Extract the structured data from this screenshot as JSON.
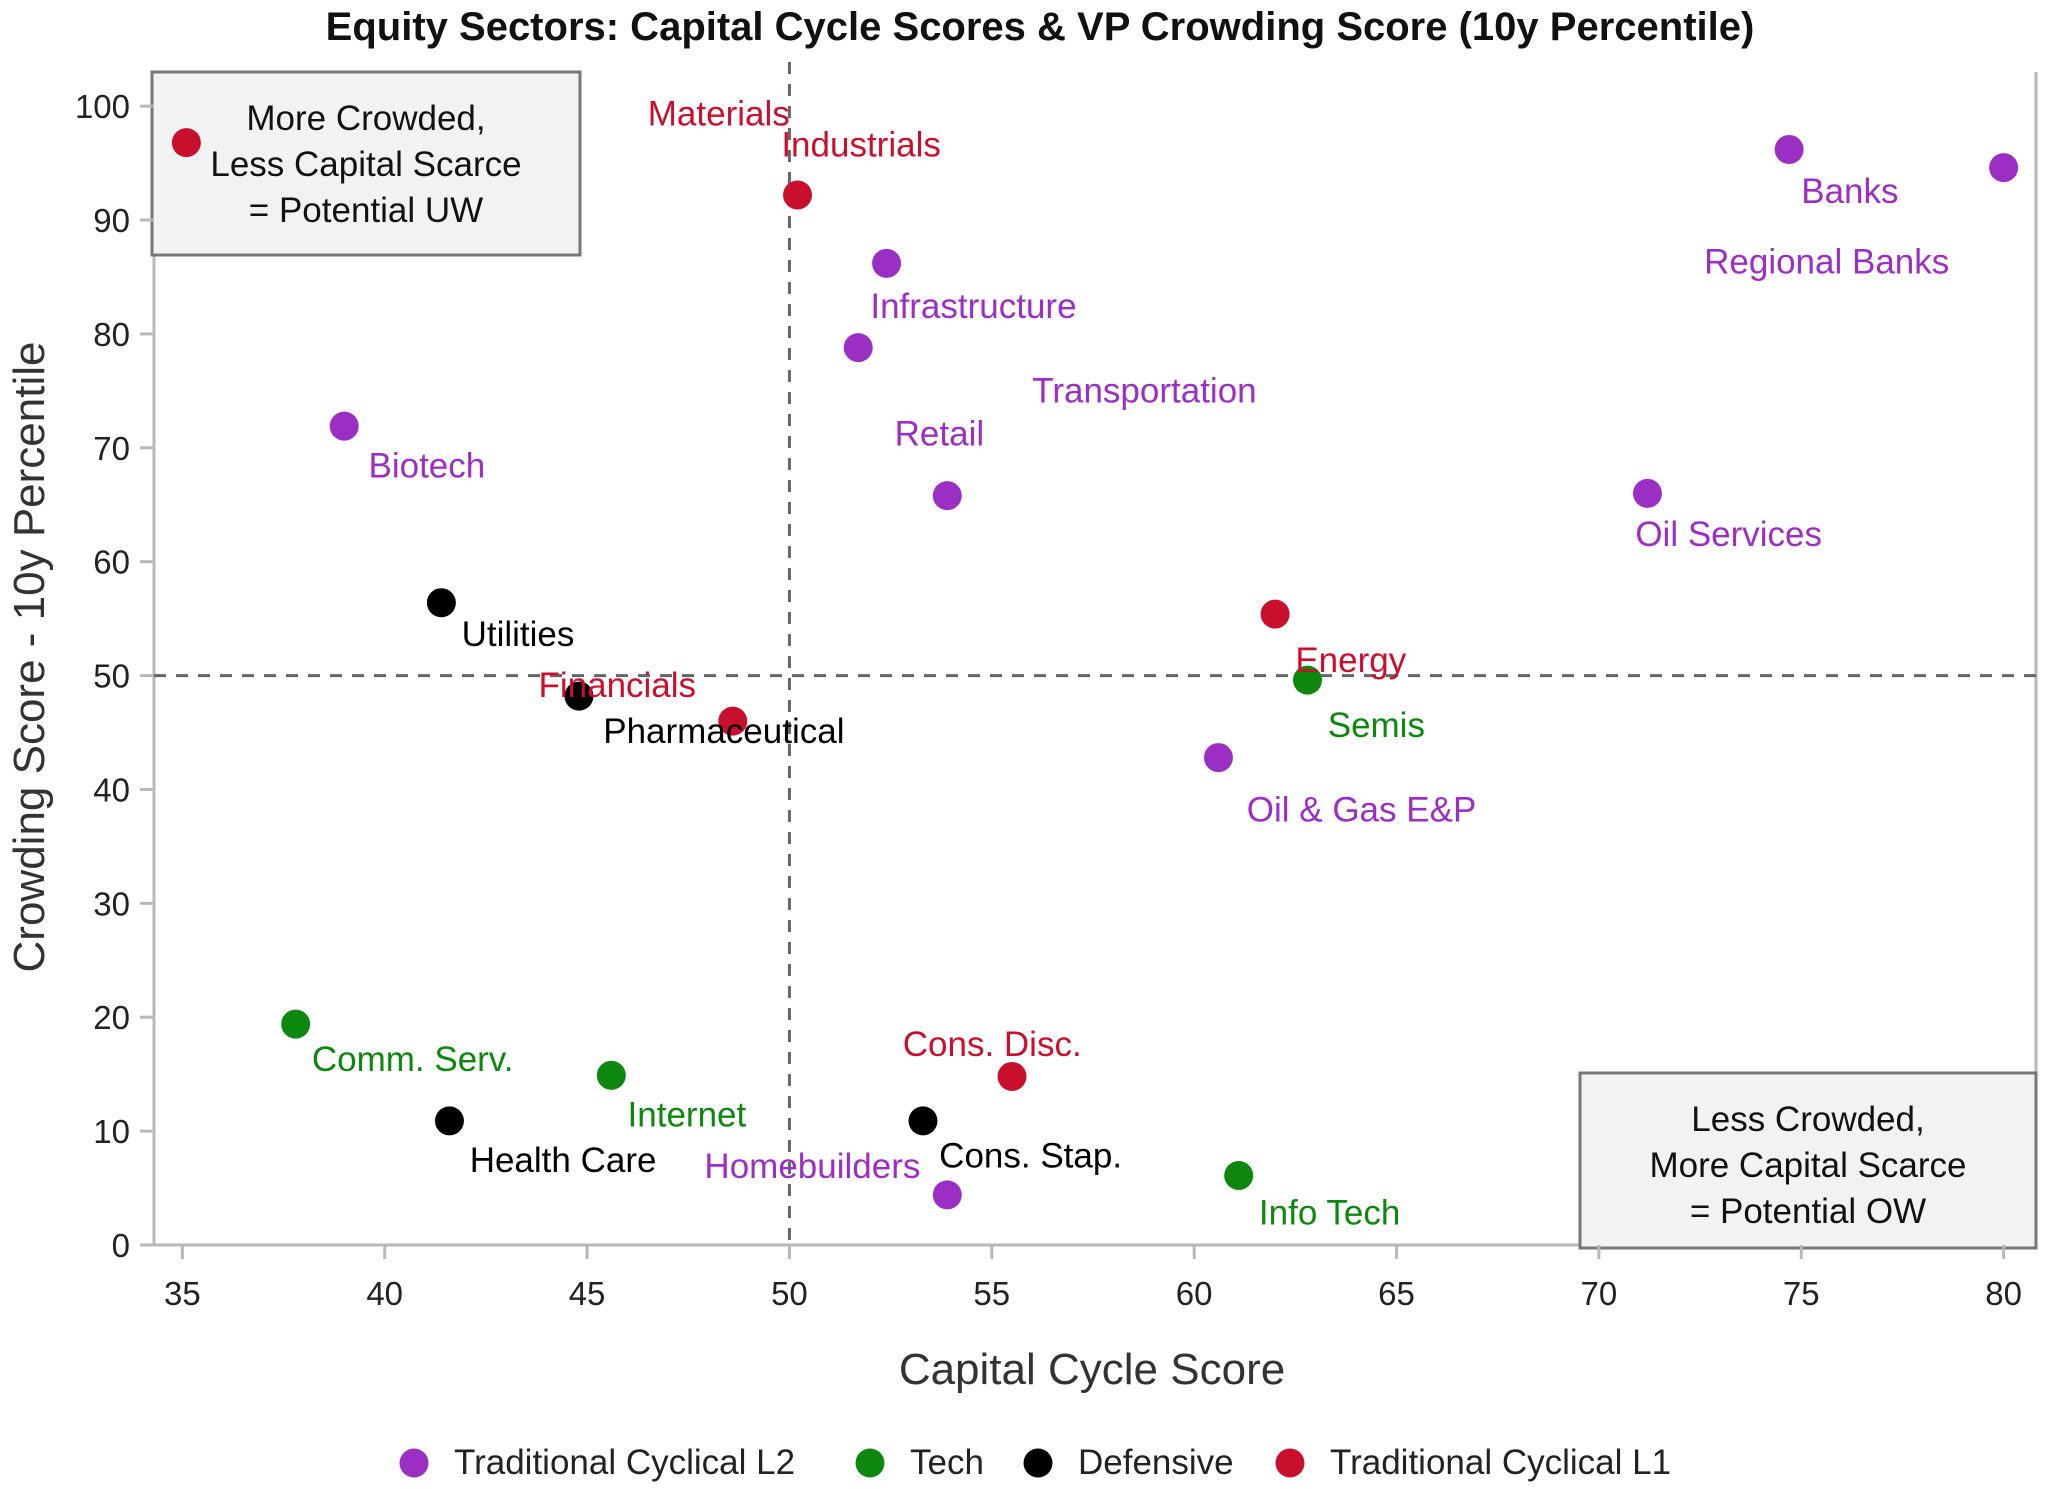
{
  "chart_data": {
    "type": "scatter",
    "title": "Equity Sectors: Capital Cycle Scores & VP Crowding Score (10y Percentile)",
    "xlabel": "Capital Cycle Score",
    "ylabel": "Crowding Score - 10y Percentile",
    "xlim": [
      34.3,
      80.8
    ],
    "ylim": [
      0,
      103
    ],
    "xticks": [
      35,
      40,
      45,
      50,
      55,
      60,
      65,
      70,
      75,
      80
    ],
    "yticks": [
      0,
      10,
      20,
      30,
      40,
      50,
      60,
      70,
      80,
      90,
      100
    ],
    "reference_lines": {
      "x": 50,
      "y": 50
    },
    "categories": [
      {
        "name": "Traditional Cyclical L2",
        "color": "#9B2FC4"
      },
      {
        "name": "Tech",
        "color": "#0E870E"
      },
      {
        "name": "Defensive",
        "color": "#000000"
      },
      {
        "name": "Traditional Cyclical L1",
        "color": "#C8102E"
      }
    ],
    "points": [
      {
        "x": 35.1,
        "y": 96.8,
        "category": "Traditional Cyclical L1"
      },
      {
        "x": 50.2,
        "y": 92.2,
        "category": "Traditional Cyclical L1"
      },
      {
        "x": 52.4,
        "y": 86.2,
        "category": "Traditional Cyclical L2"
      },
      {
        "x": 51.7,
        "y": 78.8,
        "category": "Traditional Cyclical L2"
      },
      {
        "x": 39.0,
        "y": 71.9,
        "category": "Traditional Cyclical L2"
      },
      {
        "x": 53.9,
        "y": 65.8,
        "category": "Traditional Cyclical L2"
      },
      {
        "x": 74.7,
        "y": 96.2,
        "category": "Traditional Cyclical L2"
      },
      {
        "x": 80.0,
        "y": 94.6,
        "category": "Traditional Cyclical L2"
      },
      {
        "x": 71.2,
        "y": 66.0,
        "category": "Traditional Cyclical L2"
      },
      {
        "x": 41.4,
        "y": 56.4,
        "category": "Defensive"
      },
      {
        "x": 62.0,
        "y": 55.4,
        "category": "Traditional Cyclical L1"
      },
      {
        "x": 62.8,
        "y": 49.6,
        "category": "Tech"
      },
      {
        "x": 44.8,
        "y": 48.2,
        "category": "Defensive"
      },
      {
        "x": 48.6,
        "y": 46.0,
        "category": "Traditional Cyclical L1"
      },
      {
        "x": 60.6,
        "y": 42.8,
        "category": "Traditional Cyclical L2"
      },
      {
        "x": 37.8,
        "y": 19.4,
        "category": "Tech"
      },
      {
        "x": 45.6,
        "y": 14.9,
        "category": "Tech"
      },
      {
        "x": 41.6,
        "y": 10.9,
        "category": "Defensive"
      },
      {
        "x": 53.3,
        "y": 10.9,
        "category": "Defensive"
      },
      {
        "x": 55.5,
        "y": 14.8,
        "category": "Traditional Cyclical L1"
      },
      {
        "x": 53.9,
        "y": 4.4,
        "category": "Traditional Cyclical L2"
      },
      {
        "x": 61.1,
        "y": 6.1,
        "category": "Tech"
      }
    ],
    "labels": [
      {
        "text": "Materials",
        "x": 46.5,
        "y": 98.3,
        "category": "Traditional Cyclical L1"
      },
      {
        "text": "Industrials",
        "x": 49.8,
        "y": 95.6,
        "category": "Traditional Cyclical L1"
      },
      {
        "text": "Infrastructure",
        "x": 52.0,
        "y": 81.4,
        "category": "Traditional Cyclical L2"
      },
      {
        "text": "Transportation",
        "x": 56.0,
        "y": 74.0,
        "category": "Traditional Cyclical L2"
      },
      {
        "text": "Retail",
        "x": 52.6,
        "y": 70.2,
        "category": "Traditional Cyclical L2"
      },
      {
        "text": "Biotech",
        "x": 39.6,
        "y": 67.4,
        "category": "Traditional Cyclical L2"
      },
      {
        "text": "Banks",
        "x": 75.0,
        "y": 91.5,
        "category": "Traditional Cyclical L2"
      },
      {
        "text": "Regional Banks",
        "x": 72.6,
        "y": 85.3,
        "category": "Traditional Cyclical L2"
      },
      {
        "text": "Oil Services",
        "x": 70.9,
        "y": 61.4,
        "category": "Traditional Cyclical L2"
      },
      {
        "text": "Utilities",
        "x": 41.9,
        "y": 52.6,
        "category": "Defensive"
      },
      {
        "text": "Energy",
        "x": 62.5,
        "y": 50.3,
        "category": "Traditional Cyclical L1"
      },
      {
        "text": "Financials",
        "x": 43.8,
        "y": 48.1,
        "category": "Traditional Cyclical L1"
      },
      {
        "text": "Semis",
        "x": 63.3,
        "y": 44.6,
        "category": "Tech"
      },
      {
        "text": "Pharmaceutical",
        "x": 45.4,
        "y": 44.1,
        "category": "Defensive"
      },
      {
        "text": "Oil & Gas E&P",
        "x": 61.3,
        "y": 37.2,
        "category": "Traditional Cyclical L2"
      },
      {
        "text": "Comm. Serv.",
        "x": 38.2,
        "y": 15.3,
        "category": "Tech"
      },
      {
        "text": "Cons. Disc.",
        "x": 52.8,
        "y": 16.6,
        "category": "Traditional Cyclical L1"
      },
      {
        "text": "Internet",
        "x": 46.0,
        "y": 10.4,
        "category": "Tech"
      },
      {
        "text": "Health Care",
        "x": 42.1,
        "y": 6.4,
        "category": "Defensive"
      },
      {
        "text": "Cons. Stap.",
        "x": 53.7,
        "y": 6.8,
        "category": "Defensive"
      },
      {
        "text": "Homebuilders",
        "x": 47.9,
        "y": 5.9,
        "category": "Traditional Cyclical L2"
      },
      {
        "text": "Info Tech",
        "x": 61.6,
        "y": 1.8,
        "category": "Tech"
      }
    ],
    "annotations": [
      {
        "lines": [
          "More Crowded,",
          "Less Capital Scarce",
          "= Potential UW"
        ],
        "corner": "top-left"
      },
      {
        "lines": [
          "Less Crowded,",
          "More Capital Scarce",
          "= Potential OW"
        ],
        "corner": "bottom-right"
      }
    ],
    "legend_position": "bottom"
  }
}
